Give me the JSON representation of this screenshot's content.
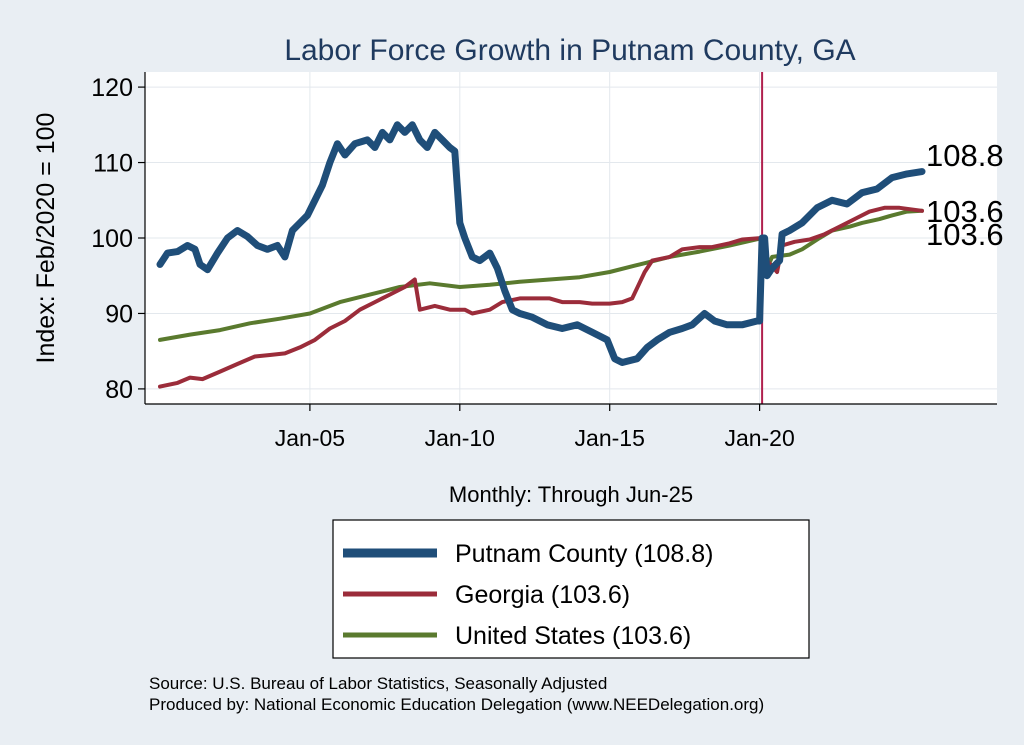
{
  "chart_data": {
    "type": "line",
    "title": "Labor Force Growth in Putnam  County, GA",
    "xlabel": "Monthly: Through Jun-25",
    "ylabel": "Index: Feb/2020 = 100",
    "x_range": [
      "2000-01",
      "2025-06"
    ],
    "ylim": [
      78,
      122
    ],
    "y_ticks": [
      80,
      90,
      100,
      110,
      120
    ],
    "x_ticks": [
      {
        "label": "Jan-05",
        "date": "2005-01"
      },
      {
        "label": "Jan-10",
        "date": "2010-01"
      },
      {
        "label": "Jan-15",
        "date": "2015-01"
      },
      {
        "label": "Jan-20",
        "date": "2020-01"
      }
    ],
    "grid": true,
    "reference_line": {
      "date": "2020-02",
      "color": "#b0204e"
    },
    "legend_position": "bottom",
    "series": [
      {
        "name": "Putnam  County (108.8)",
        "color": "#1f4e79",
        "end_label": "108.8",
        "points": [
          [
            "2000-01",
            96.5
          ],
          [
            "2000-04",
            98.0
          ],
          [
            "2000-08",
            98.2
          ],
          [
            "2000-12",
            99.0
          ],
          [
            "2001-03",
            98.5
          ],
          [
            "2001-05",
            96.5
          ],
          [
            "2001-08",
            95.8
          ],
          [
            "2001-12",
            98.0
          ],
          [
            "2002-04",
            100.0
          ],
          [
            "2002-08",
            101.0
          ],
          [
            "2002-12",
            100.2
          ],
          [
            "2003-04",
            99.0
          ],
          [
            "2003-08",
            98.5
          ],
          [
            "2003-12",
            99.0
          ],
          [
            "2004-03",
            97.5
          ],
          [
            "2004-06",
            101.0
          ],
          [
            "2004-09",
            102.0
          ],
          [
            "2004-12",
            103.0
          ],
          [
            "2005-03",
            105.0
          ],
          [
            "2005-06",
            107.0
          ],
          [
            "2005-09",
            110.0
          ],
          [
            "2005-12",
            112.5
          ],
          [
            "2006-03",
            111.0
          ],
          [
            "2006-07",
            112.5
          ],
          [
            "2006-12",
            113.0
          ],
          [
            "2007-03",
            112.0
          ],
          [
            "2007-06",
            114.0
          ],
          [
            "2007-09",
            113.0
          ],
          [
            "2007-12",
            115.0
          ],
          [
            "2008-03",
            114.0
          ],
          [
            "2008-06",
            115.0
          ],
          [
            "2008-09",
            113.0
          ],
          [
            "2008-12",
            112.0
          ],
          [
            "2009-03",
            114.0
          ],
          [
            "2009-06",
            113.0
          ],
          [
            "2009-09",
            112.0
          ],
          [
            "2009-11",
            111.5
          ],
          [
            "2010-01",
            102.0
          ],
          [
            "2010-03",
            100.0
          ],
          [
            "2010-06",
            97.5
          ],
          [
            "2010-09",
            97.0
          ],
          [
            "2011-01",
            98.0
          ],
          [
            "2011-04",
            96.0
          ],
          [
            "2011-07",
            93.0
          ],
          [
            "2011-10",
            90.5
          ],
          [
            "2012-01",
            90.0
          ],
          [
            "2012-06",
            89.5
          ],
          [
            "2012-12",
            88.5
          ],
          [
            "2013-06",
            88.0
          ],
          [
            "2013-12",
            88.5
          ],
          [
            "2014-06",
            87.5
          ],
          [
            "2014-12",
            86.5
          ],
          [
            "2015-03",
            84.0
          ],
          [
            "2015-06",
            83.5
          ],
          [
            "2015-12",
            84.0
          ],
          [
            "2016-04",
            85.5
          ],
          [
            "2016-08",
            86.5
          ],
          [
            "2017-01",
            87.5
          ],
          [
            "2017-06",
            88.0
          ],
          [
            "2017-10",
            88.5
          ],
          [
            "2018-03",
            90.0
          ],
          [
            "2018-07",
            89.0
          ],
          [
            "2018-12",
            88.5
          ],
          [
            "2019-06",
            88.5
          ],
          [
            "2019-12",
            89.0
          ],
          [
            "2020-01",
            89.0
          ],
          [
            "2020-02",
            100.0
          ],
          [
            "2020-03",
            100.0
          ],
          [
            "2020-04",
            95.0
          ],
          [
            "2020-06",
            96.0
          ],
          [
            "2020-09",
            97.0
          ],
          [
            "2020-10",
            100.5
          ],
          [
            "2021-01",
            101.0
          ],
          [
            "2021-06",
            102.0
          ],
          [
            "2021-12",
            104.0
          ],
          [
            "2022-06",
            105.0
          ],
          [
            "2022-12",
            104.5
          ],
          [
            "2023-06",
            106.0
          ],
          [
            "2023-12",
            106.5
          ],
          [
            "2024-06",
            108.0
          ],
          [
            "2024-12",
            108.5
          ],
          [
            "2025-06",
            108.8
          ]
        ]
      },
      {
        "name": "Georgia (103.6)",
        "color": "#9b2c3a",
        "end_label": "103.6",
        "points": [
          [
            "2000-01",
            80.3
          ],
          [
            "2000-08",
            80.8
          ],
          [
            "2001-01",
            81.5
          ],
          [
            "2001-06",
            81.3
          ],
          [
            "2002-01",
            82.3
          ],
          [
            "2002-08",
            83.3
          ],
          [
            "2003-03",
            84.3
          ],
          [
            "2003-09",
            84.5
          ],
          [
            "2004-03",
            84.7
          ],
          [
            "2004-09",
            85.5
          ],
          [
            "2005-03",
            86.5
          ],
          [
            "2005-09",
            88.0
          ],
          [
            "2006-03",
            89.0
          ],
          [
            "2006-09",
            90.5
          ],
          [
            "2007-03",
            91.5
          ],
          [
            "2007-09",
            92.5
          ],
          [
            "2008-03",
            93.5
          ],
          [
            "2008-07",
            94.5
          ],
          [
            "2008-09",
            90.5
          ],
          [
            "2009-03",
            91.0
          ],
          [
            "2009-09",
            90.5
          ],
          [
            "2010-03",
            90.5
          ],
          [
            "2010-06",
            90.0
          ],
          [
            "2011-01",
            90.5
          ],
          [
            "2011-06",
            91.5
          ],
          [
            "2012-01",
            92.0
          ],
          [
            "2012-06",
            92.0
          ],
          [
            "2013-01",
            92.0
          ],
          [
            "2013-06",
            91.5
          ],
          [
            "2014-01",
            91.5
          ],
          [
            "2014-06",
            91.3
          ],
          [
            "2015-01",
            91.3
          ],
          [
            "2015-06",
            91.5
          ],
          [
            "2015-10",
            92.0
          ],
          [
            "2016-03",
            95.5
          ],
          [
            "2016-06",
            97.0
          ],
          [
            "2017-01",
            97.5
          ],
          [
            "2017-06",
            98.5
          ],
          [
            "2018-01",
            98.8
          ],
          [
            "2018-06",
            98.8
          ],
          [
            "2019-01",
            99.3
          ],
          [
            "2019-06",
            99.8
          ],
          [
            "2020-02",
            100.0
          ],
          [
            "2020-04",
            97.0
          ],
          [
            "2020-08",
            95.5
          ],
          [
            "2020-10",
            99.0
          ],
          [
            "2021-03",
            99.5
          ],
          [
            "2021-09",
            99.8
          ],
          [
            "2022-03",
            100.5
          ],
          [
            "2022-09",
            101.5
          ],
          [
            "2023-03",
            102.5
          ],
          [
            "2023-09",
            103.5
          ],
          [
            "2024-03",
            104.0
          ],
          [
            "2024-09",
            104.0
          ],
          [
            "2025-06",
            103.6
          ]
        ]
      },
      {
        "name": "United States (103.6)",
        "color": "#5a7a2e",
        "end_label": "103.6",
        "points": [
          [
            "2000-01",
            86.5
          ],
          [
            "2001-01",
            87.2
          ],
          [
            "2002-01",
            87.8
          ],
          [
            "2003-01",
            88.7
          ],
          [
            "2004-01",
            89.3
          ],
          [
            "2005-01",
            90.0
          ],
          [
            "2006-01",
            91.5
          ],
          [
            "2007-01",
            92.5
          ],
          [
            "2008-01",
            93.5
          ],
          [
            "2009-01",
            94.0
          ],
          [
            "2010-01",
            93.5
          ],
          [
            "2011-01",
            93.8
          ],
          [
            "2012-01",
            94.2
          ],
          [
            "2013-01",
            94.5
          ],
          [
            "2014-01",
            94.8
          ],
          [
            "2015-01",
            95.5
          ],
          [
            "2016-01",
            96.5
          ],
          [
            "2017-01",
            97.5
          ],
          [
            "2018-01",
            98.2
          ],
          [
            "2019-01",
            99.0
          ],
          [
            "2020-02",
            100.0
          ],
          [
            "2020-04",
            96.0
          ],
          [
            "2020-06",
            97.5
          ],
          [
            "2021-01",
            97.8
          ],
          [
            "2021-06",
            98.5
          ],
          [
            "2022-01",
            100.0
          ],
          [
            "2022-06",
            101.0
          ],
          [
            "2023-01",
            101.5
          ],
          [
            "2023-06",
            102.0
          ],
          [
            "2024-01",
            102.5
          ],
          [
            "2024-06",
            103.0
          ],
          [
            "2024-12",
            103.5
          ],
          [
            "2025-06",
            103.6
          ]
        ]
      }
    ]
  },
  "footer": {
    "source": "Source: U.S. Bureau of Labor Statistics, Seasonally Adjusted",
    "produced_by": "Produced by: National Economic Education Delegation (www.NEEDelegation.org)"
  }
}
